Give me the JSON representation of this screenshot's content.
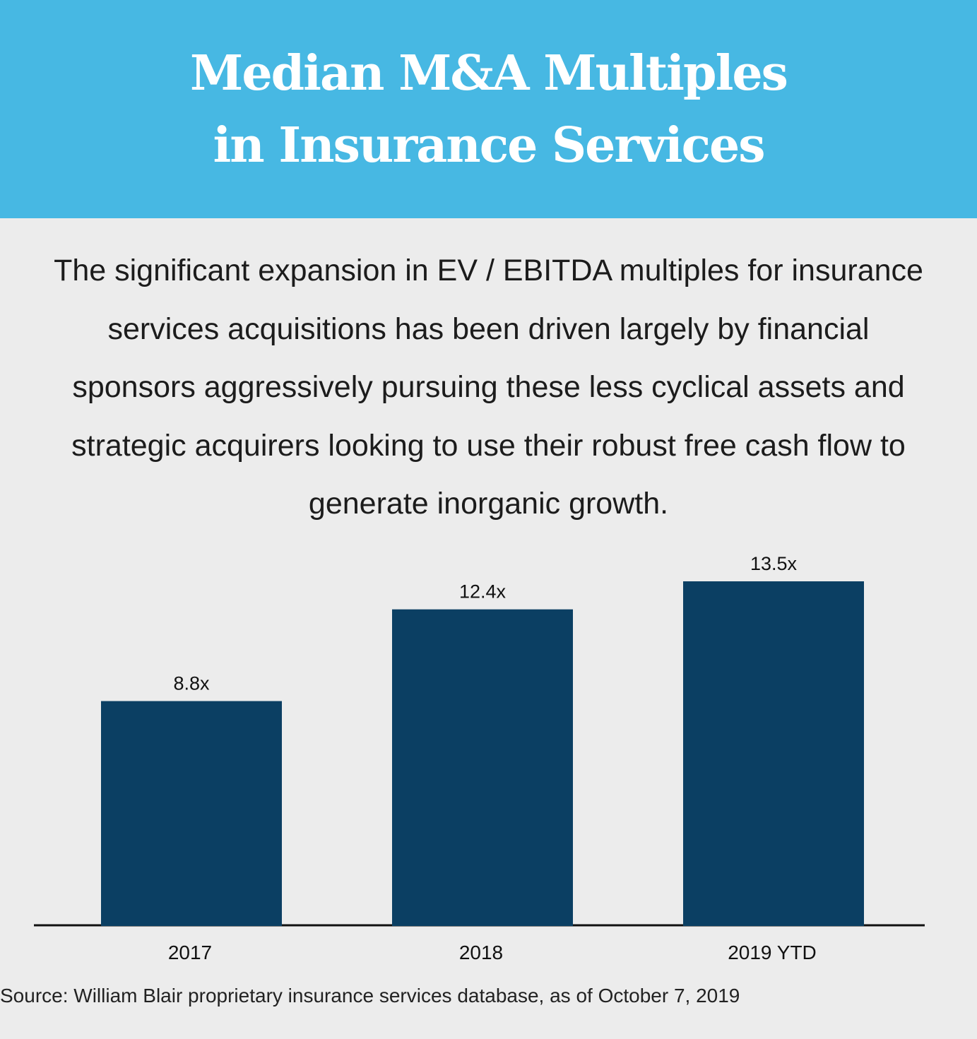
{
  "header": {
    "title_line1": "Median M&A Multiples",
    "title_line2": "in Insurance Services"
  },
  "description": {
    "lines": [
      "The significant expansion in EV / EBITDA multiples for insurance",
      "services acquisitions has been driven largely by financial",
      "sponsors aggressively pursuing these less cyclical assets and",
      "strategic acquirers looking to use their robust free cash flow to",
      "generate inorganic growth."
    ]
  },
  "chart_data": {
    "type": "bar",
    "categories": [
      "2017",
      "2018",
      "2019 YTD"
    ],
    "values": [
      8.8,
      12.4,
      13.5
    ],
    "data_labels": [
      "8.8x",
      "12.4x",
      "13.5x"
    ],
    "title": "Median M&A Multiples in Insurance Services",
    "xlabel": "",
    "ylabel": "",
    "ylim": [
      0,
      14
    ],
    "grid": false,
    "legend": "none",
    "bar_color": "#0b3f63",
    "axis_color": "#111111"
  },
  "footer": {
    "source": "Source: William Blair proprietary insurance services database, as of October 7, 2019"
  },
  "colors": {
    "header_bg": "#47b8e3",
    "page_bg": "#ececec",
    "text": "#1c1c1c"
  }
}
